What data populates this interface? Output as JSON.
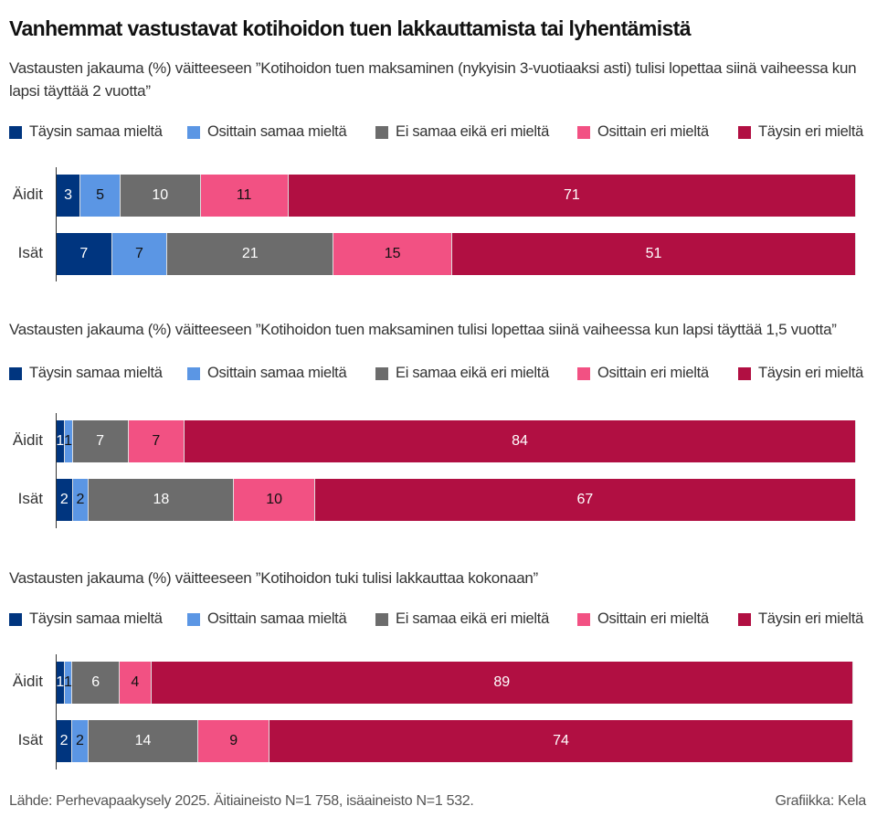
{
  "title": "Vanhemmat vastustavat kotihoidon tuen lakkauttamista tai lyhentämistä",
  "footer": {
    "source": "Lähde: Perhevapaakysely 2025. Äitiaineisto N=1 758, isäaineisto N=1 532.",
    "credit": "Grafiikka: Kela"
  },
  "chart_data": [
    {
      "type": "bar",
      "orientation": "horizontal-stacked",
      "unit": "%",
      "title": "Vastausten jakauma (%) väitteeseen ”Kotihoidon tuen maksaminen (nykyisin 3-vuotiaaksi asti) tulisi lopettaa siinä vaiheessa kun lapsi täyttää 2 vuotta”",
      "categories": [
        "Äidit",
        "Isät"
      ],
      "series": [
        {
          "name": "Täysin samaa mieltä",
          "color": "#00357f",
          "values": [
            3,
            7
          ]
        },
        {
          "name": "Osittain samaa mieltä",
          "color": "#5b96e4",
          "values": [
            5,
            7
          ]
        },
        {
          "name": "Ei samaa eikä eri mieltä",
          "color": "#6c6c6c",
          "values": [
            10,
            21
          ]
        },
        {
          "name": "Osittain eri mieltä",
          "color": "#f25183",
          "values": [
            11,
            15
          ]
        },
        {
          "name": "Täysin eri mieltä",
          "color": "#b10f42",
          "values": [
            71,
            51
          ]
        }
      ],
      "legend": "top"
    },
    {
      "type": "bar",
      "orientation": "horizontal-stacked",
      "unit": "%",
      "title": "Vastausten jakauma (%) väitteeseen ”Kotihoidon tuen maksaminen tulisi lopettaa siinä vaiheessa kun lapsi täyttää 1,5 vuotta”",
      "categories": [
        "Äidit",
        "Isät"
      ],
      "series": [
        {
          "name": "Täysin samaa mieltä",
          "color": "#00357f",
          "values": [
            1,
            2
          ]
        },
        {
          "name": "Osittain samaa mieltä",
          "color": "#5b96e4",
          "values": [
            1,
            2
          ]
        },
        {
          "name": "Ei samaa eikä eri mieltä",
          "color": "#6c6c6c",
          "values": [
            7,
            18
          ]
        },
        {
          "name": "Osittain eri mieltä",
          "color": "#f25183",
          "values": [
            7,
            10
          ]
        },
        {
          "name": "Täysin eri mieltä",
          "color": "#b10f42",
          "values": [
            84,
            67
          ]
        }
      ],
      "legend": "top"
    },
    {
      "type": "bar",
      "orientation": "horizontal-stacked",
      "unit": "%",
      "title": "Vastausten jakauma (%) väitteeseen ”Kotihoidon tuki tulisi lakkauttaa kokonaan”",
      "categories": [
        "Äidit",
        "Isät"
      ],
      "series": [
        {
          "name": "Täysin samaa mieltä",
          "color": "#00357f",
          "values": [
            1,
            2
          ]
        },
        {
          "name": "Osittain samaa mieltä",
          "color": "#5b96e4",
          "values": [
            1,
            2
          ]
        },
        {
          "name": "Ei samaa eikä eri mieltä",
          "color": "#6c6c6c",
          "values": [
            6,
            14
          ]
        },
        {
          "name": "Osittain eri mieltä",
          "color": "#f25183",
          "values": [
            4,
            9
          ]
        },
        {
          "name": "Täysin eri mieltä",
          "color": "#b10f42",
          "values": [
            89,
            74
          ]
        }
      ],
      "legend": "top"
    }
  ]
}
